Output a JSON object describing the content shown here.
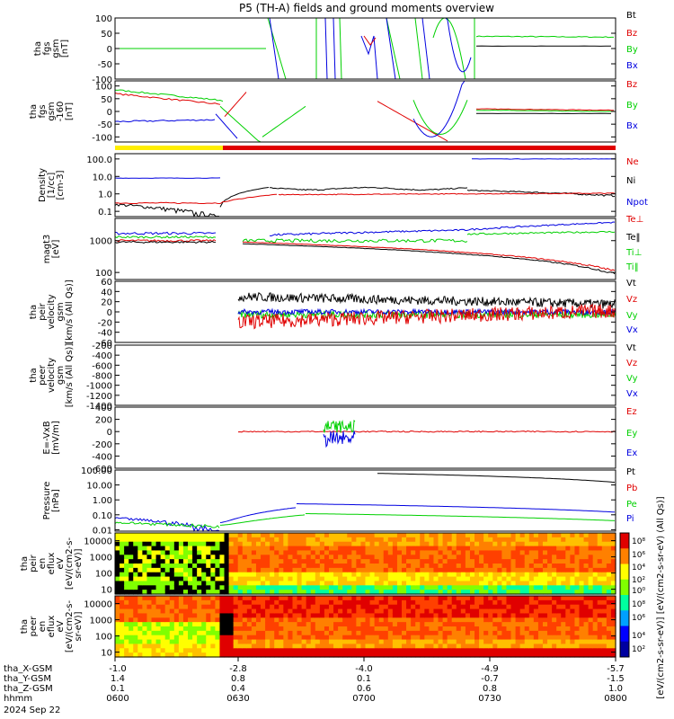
{
  "title": "P5 (TH-A) fields and ground moments overview",
  "colors": {
    "black": "#000000",
    "red": "#e00000",
    "green": "#00d000",
    "blue": "#0000e0",
    "bar_yellow": "#ffee00",
    "bar_red": "#e00000"
  },
  "chart_data": [
    {
      "type": "line",
      "ylabel": [
        "tha",
        "fgs",
        "gsm",
        "[nT]"
      ],
      "ylim": [
        -100,
        100
      ],
      "ticks": [
        "100",
        "50",
        "0",
        "-50",
        "-100"
      ],
      "legend": [
        "Bt",
        "Bz",
        "By",
        "Bx"
      ],
      "legend_colors": [
        "black",
        "red",
        "green",
        "blue"
      ]
    },
    {
      "type": "line",
      "ylabel": [
        "tha",
        "fgs",
        "gsm",
        "-160",
        "[nT]"
      ],
      "ylim": [
        -120,
        120
      ],
      "ticks": [
        "100",
        "50",
        "0",
        "-50",
        "-100"
      ],
      "legend": [
        "Bz",
        "By",
        "Bx"
      ],
      "legend_colors": [
        "red",
        "green",
        "blue"
      ]
    },
    {
      "type": "line",
      "ylabel": [
        "Density",
        "[1/cc]",
        "[cm-3]"
      ],
      "ylim": [
        0.05,
        200
      ],
      "log": true,
      "ticks": [
        "100.0",
        "10.0",
        "1.0",
        "0.1"
      ],
      "legend": [
        "Ne",
        "Ni",
        "Npot"
      ],
      "legend_colors": [
        "red",
        "black",
        "blue"
      ]
    },
    {
      "type": "line",
      "ylabel": [
        "magt3",
        "[eV]"
      ],
      "ylim": [
        60,
        5000
      ],
      "log": true,
      "ticks": [
        "1000",
        "100"
      ],
      "legend": [
        "Te⊥",
        "Te‖",
        "Ti⊥",
        "Ti‖"
      ],
      "legend_colors": [
        "red",
        "black",
        "green",
        "green"
      ]
    },
    {
      "type": "line",
      "ylabel": [
        "tha",
        "peir",
        "velocity",
        "gsm",
        "[km/s (All Qs)]"
      ],
      "ylim": [
        -60,
        60
      ],
      "ticks": [
        "60",
        "40",
        "20",
        "0",
        "-20",
        "-40",
        "-60"
      ],
      "legend": [
        "Vt",
        "Vz",
        "Vy",
        "Vx"
      ],
      "legend_colors": [
        "black",
        "red",
        "green",
        "blue"
      ]
    },
    {
      "type": "line",
      "ylabel": [
        "tha",
        "peer",
        "velocity",
        "gsm",
        "[km/s (All Qs)]"
      ],
      "ylim": [
        -1400,
        -200
      ],
      "ticks": [
        "-200",
        "-400",
        "-600",
        "-800",
        "-1000",
        "-1200",
        "-1400"
      ],
      "legend": [
        "Vt",
        "Vz",
        "Vy",
        "Vx"
      ],
      "legend_colors": [
        "black",
        "red",
        "green",
        "blue"
      ]
    },
    {
      "type": "line",
      "ylabel": [
        "E=-VxB",
        "[mV/m]"
      ],
      "ylim": [
        -600,
        400
      ],
      "ticks": [
        "400",
        "200",
        "0",
        "-200",
        "-400",
        "-600"
      ],
      "legend": [
        "Ez",
        "Ey",
        "Ex"
      ],
      "legend_colors": [
        "red",
        "green",
        "blue"
      ]
    },
    {
      "type": "line",
      "ylabel": [
        "Pressure",
        "[nPa]"
      ],
      "ylim": [
        0.008,
        100
      ],
      "log": true,
      "ticks": [
        "100.00",
        "10.00",
        "1.00",
        "0.10",
        "0.01"
      ],
      "legend": [
        "Pt",
        "Pb",
        "Pe",
        "Pi"
      ],
      "legend_colors": [
        "black",
        "red",
        "green",
        "blue"
      ]
    },
    {
      "type": "heatmap",
      "ylabel": [
        "tha",
        "peir",
        "en",
        "eflux",
        "eV",
        "[eV/(cm2-s-",
        "sr-eV)]"
      ],
      "ylim": [
        5,
        30000
      ],
      "log": true,
      "ticks": [
        "10000",
        "1000",
        "100",
        "10"
      ]
    },
    {
      "type": "heatmap",
      "ylabel": [
        "tha",
        "peer",
        "en",
        "eflux",
        "eV",
        "[eV/(cm2-s-",
        "sr-eV)]"
      ],
      "ylim": [
        5,
        30000
      ],
      "log": true,
      "ticks": [
        "10000",
        "1000",
        "100",
        "10"
      ]
    }
  ],
  "colorbar": {
    "label": "[eV/(cm2-s-sr-eV)] [eV/(cm2-s-sr-eV) (All Qs)]",
    "upper_ticks": [
      "10⁸",
      "10⁶",
      "10⁴",
      "10²",
      "10⁰"
    ],
    "lower_ticks": [
      "10⁸",
      "10⁶",
      "10⁴",
      "10²"
    ]
  },
  "xaxis": {
    "rows": [
      {
        "label": "tha_X-GSM",
        "values": [
          "-1.0",
          "-2.8",
          "-4.0",
          "-4.9",
          "-5.7"
        ]
      },
      {
        "label": "tha_Y-GSM",
        "values": [
          "1.4",
          "0.8",
          "0.1",
          "-0.7",
          "-1.5"
        ]
      },
      {
        "label": "tha_Z-GSM",
        "values": [
          "0.1",
          "0.4",
          "0.6",
          "0.8",
          "1.0"
        ]
      },
      {
        "label": "hhmm",
        "values": [
          "0600",
          "0630",
          "0700",
          "0730",
          "0800"
        ]
      }
    ],
    "date": "2024 Sep 22"
  }
}
